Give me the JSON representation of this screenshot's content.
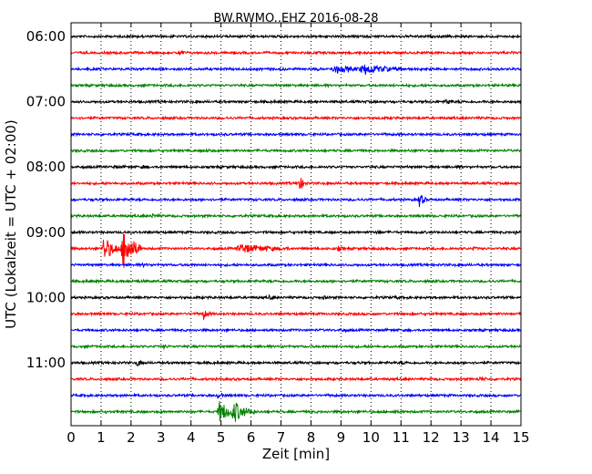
{
  "chart_data": {
    "type": "line",
    "title": "BW.RWMO..EHZ 2016-08-28",
    "xlabel": "Zeit  [min]",
    "ylabel": "UTC (Lokalzeit = UTC + 02:00)",
    "xlim": [
      0,
      15
    ],
    "x_ticks": [
      "0",
      "1",
      "2",
      "3",
      "4",
      "5",
      "6",
      "7",
      "8",
      "9",
      "10",
      "11",
      "12",
      "13",
      "14",
      "15"
    ],
    "y_ticks": [
      "06:00",
      "07:00",
      "08:00",
      "09:00",
      "10:00",
      "11:00"
    ],
    "grid": "dotted vertical lines at each minute",
    "colors": {
      "black": "#000000",
      "red": "#ff0000",
      "blue": "#0000ff",
      "green": "#008000"
    },
    "trace_interval_minutes": 15,
    "traces": [
      {
        "start": "06:00",
        "color": "black",
        "events": []
      },
      {
        "start": "06:15",
        "color": "red",
        "events": [
          {
            "t": 3.6,
            "amp": 0.2
          }
        ]
      },
      {
        "start": "06:30",
        "color": "blue",
        "events": [
          {
            "t": 8.8,
            "amp": 0.25,
            "dur": 0.6
          },
          {
            "t": 9.8,
            "amp": 0.3,
            "dur": 0.7
          }
        ]
      },
      {
        "start": "06:45",
        "color": "green",
        "events": []
      },
      {
        "start": "07:00",
        "color": "black",
        "events": [
          {
            "t": 12.5,
            "amp": 0.2
          }
        ]
      },
      {
        "start": "07:15",
        "color": "red",
        "events": []
      },
      {
        "start": "07:30",
        "color": "blue",
        "events": []
      },
      {
        "start": "07:45",
        "color": "green",
        "events": [
          {
            "t": 4.5,
            "amp": 0.1
          }
        ]
      },
      {
        "start": "08:00",
        "color": "black",
        "events": [
          {
            "t": 1.4,
            "amp": 0.1
          },
          {
            "t": 2.4,
            "amp": 0.1
          },
          {
            "t": 12.9,
            "amp": 0.1
          }
        ]
      },
      {
        "start": "08:15",
        "color": "red",
        "events": [
          {
            "t": 7.6,
            "amp": 0.6
          }
        ]
      },
      {
        "start": "08:30",
        "color": "blue",
        "events": [
          {
            "t": 11.6,
            "amp": 0.6
          }
        ]
      },
      {
        "start": "08:45",
        "color": "green",
        "events": [
          {
            "t": 2.7,
            "amp": 0.1
          }
        ]
      },
      {
        "start": "09:00",
        "color": "black",
        "events": [
          {
            "t": 10.2,
            "amp": 0.15
          },
          {
            "t": 14.8,
            "amp": 0.1
          }
        ]
      },
      {
        "start": "09:15",
        "color": "red",
        "events": [
          {
            "t": 1.1,
            "amp": 0.9,
            "dur": 0.3
          },
          {
            "t": 1.75,
            "amp": 1.6,
            "dur": 0.3
          },
          {
            "t": 5.7,
            "amp": 0.3,
            "dur": 0.8
          },
          {
            "t": 8.9,
            "amp": 0.15
          },
          {
            "t": 13.4,
            "amp": 0.1
          }
        ]
      },
      {
        "start": "09:30",
        "color": "blue",
        "events": [
          {
            "t": 2.4,
            "amp": 0.1
          }
        ]
      },
      {
        "start": "09:45",
        "color": "green",
        "events": [
          {
            "t": 2.2,
            "amp": 0.1
          }
        ]
      },
      {
        "start": "10:00",
        "color": "black",
        "events": [
          {
            "t": 6.6,
            "amp": 0.1
          },
          {
            "t": 8.4,
            "amp": 0.1
          },
          {
            "t": 10.8,
            "amp": 0.1
          }
        ]
      },
      {
        "start": "10:15",
        "color": "red",
        "events": [
          {
            "t": 4.4,
            "amp": 0.4
          }
        ]
      },
      {
        "start": "10:30",
        "color": "blue",
        "events": [
          {
            "t": 9.0,
            "amp": 0.1
          }
        ]
      },
      {
        "start": "10:45",
        "color": "green",
        "events": [
          {
            "t": 3.1,
            "amp": 0.1
          }
        ]
      },
      {
        "start": "11:00",
        "color": "black",
        "events": [
          {
            "t": 2.2,
            "amp": 0.25
          },
          {
            "t": 11.0,
            "amp": 0.1
          }
        ]
      },
      {
        "start": "11:15",
        "color": "red",
        "events": [
          {
            "t": 13.6,
            "amp": 0.2
          }
        ]
      },
      {
        "start": "11:30",
        "color": "blue",
        "events": [
          {
            "t": 4.9,
            "amp": 0.2
          }
        ]
      },
      {
        "start": "11:45",
        "color": "green",
        "events": [
          {
            "t": 4.95,
            "amp": 0.8,
            "dur": 0.3
          },
          {
            "t": 5.45,
            "amp": 0.7,
            "dur": 0.35
          },
          {
            "t": 10.7,
            "amp": 0.1
          }
        ]
      }
    ]
  }
}
